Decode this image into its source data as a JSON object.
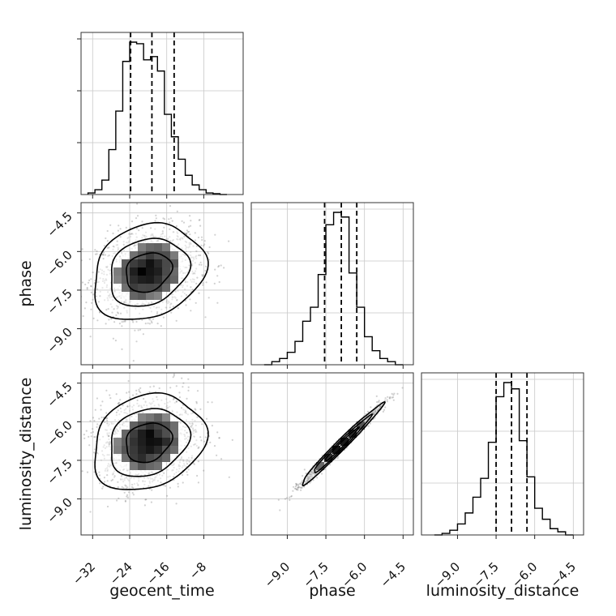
{
  "chart_data": {
    "type": "corner",
    "parameters": [
      "geocent_time",
      "phase",
      "luminosity_distance"
    ],
    "ticks": {
      "geocent_time": {
        "values": [
          -32,
          -24,
          -16,
          -8
        ],
        "labels": [
          "−32",
          "−24",
          "−16",
          "−8"
        ],
        "range": [
          -34.5,
          0.5
        ]
      },
      "phase": {
        "values": [
          -9.0,
          -7.5,
          -6.0,
          -4.5
        ],
        "labels": [
          "−9.0",
          "−7.5",
          "−6.0",
          "−4.5"
        ],
        "range": [
          -10.4,
          -4.1
        ]
      },
      "luminosity_distance": {
        "values": [
          -9.0,
          -7.5,
          -6.0,
          -4.5
        ],
        "labels": [
          "−9.0",
          "−7.5",
          "−6.0",
          "−4.5"
        ],
        "range": [
          -10.4,
          -4.1
        ]
      }
    },
    "grid": true,
    "diagonal": [
      {
        "parameter": "geocent_time",
        "bin_edges": [
          -33,
          -31.5,
          -30,
          -28.5,
          -27,
          -25.5,
          -24,
          -22.5,
          -21,
          -19.5,
          -18,
          -16.5,
          -15,
          -13.5,
          -12,
          -10.5,
          -9,
          -7.5,
          -6,
          -4.5,
          -3
        ],
        "counts": [
          1,
          3,
          9,
          28,
          52,
          83,
          95,
          94,
          84,
          86,
          77,
          50,
          36,
          22,
          12,
          6,
          3,
          1,
          0.5,
          0
        ],
        "quantiles": [
          -23.8,
          -19.2,
          -14.4
        ]
      },
      {
        "parameter": "phase",
        "bin_edges": [
          -9.9,
          -9.6,
          -9.3,
          -9.0,
          -8.7,
          -8.4,
          -8.1,
          -7.8,
          -7.5,
          -7.2,
          -6.9,
          -6.6,
          -6.3,
          -6.0,
          -5.7,
          -5.4,
          -5.1,
          -4.8,
          -4.5
        ],
        "counts": [
          0,
          2,
          4,
          8,
          15,
          28,
          37,
          58,
          90,
          98,
          95,
          59,
          37,
          18,
          9,
          4,
          2,
          0
        ],
        "quantiles": [
          -7.55,
          -6.9,
          -6.3
        ]
      },
      {
        "parameter": "luminosity_distance",
        "bin_edges": [
          -9.9,
          -9.6,
          -9.3,
          -9.0,
          -8.7,
          -8.4,
          -8.1,
          -7.8,
          -7.5,
          -7.2,
          -6.9,
          -6.6,
          -6.3,
          -6.0,
          -5.7,
          -5.4,
          -5.1,
          -4.8,
          -4.5
        ],
        "counts": [
          0,
          1,
          3,
          7,
          14,
          24,
          36,
          59,
          88,
          97,
          93,
          60,
          37,
          17,
          10,
          4,
          2,
          0
        ],
        "quantiles": [
          -7.5,
          -6.9,
          -6.3
        ]
      }
    ],
    "joint": [
      {
        "x": "geocent_time",
        "y": "phase",
        "mean": [
          -20,
          -6.8
        ],
        "sd": [
          5.5,
          0.85
        ],
        "corr": 0.2
      },
      {
        "x": "geocent_time",
        "y": "luminosity_distance",
        "mean": [
          -20,
          -6.8
        ],
        "sd": [
          5.5,
          0.85
        ],
        "corr": 0.2
      },
      {
        "x": "phase",
        "y": "luminosity_distance",
        "mean": [
          -6.9,
          -6.9
        ],
        "sd": [
          0.72,
          0.72
        ],
        "corr": 0.985
      }
    ]
  }
}
